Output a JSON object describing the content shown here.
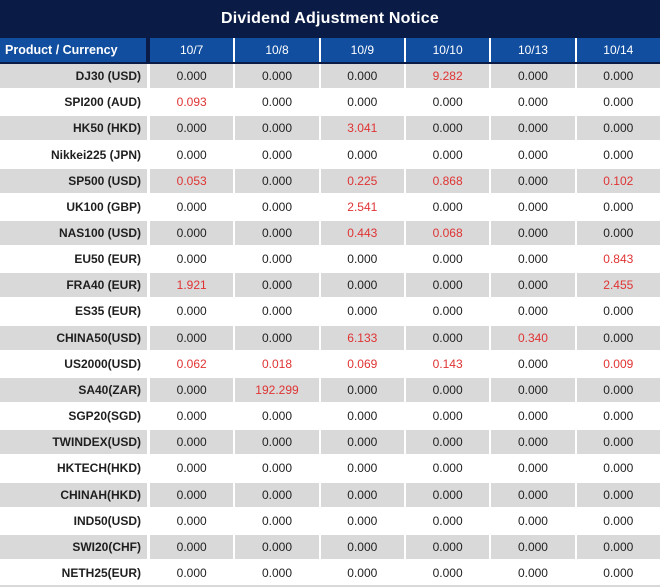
{
  "title": "Dividend Adjustment Notice",
  "colors": {
    "title_bg": "#0A1C45",
    "header_bg": "#114EA0",
    "row_alt": "#D9D9D9",
    "separator": "#FFFFFF",
    "text": "#1F1F1F",
    "red": "#E03333"
  },
  "table": {
    "product_header": "Product / Currency",
    "date_headers": [
      "10/7",
      "10/8",
      "10/9",
      "10/10",
      "10/13",
      "10/14"
    ],
    "rows": [
      {
        "product": "DJ30 (USD)",
        "values": [
          "0.000",
          "0.000",
          "0.000",
          "9.282",
          "0.000",
          "0.000"
        ],
        "red": [
          0,
          0,
          0,
          1,
          0,
          0
        ]
      },
      {
        "product": "SPI200 (AUD)",
        "values": [
          "0.093",
          "0.000",
          "0.000",
          "0.000",
          "0.000",
          "0.000"
        ],
        "red": [
          1,
          0,
          0,
          0,
          0,
          0
        ]
      },
      {
        "product": "HK50 (HKD)",
        "values": [
          "0.000",
          "0.000",
          "3.041",
          "0.000",
          "0.000",
          "0.000"
        ],
        "red": [
          0,
          0,
          1,
          0,
          0,
          0
        ]
      },
      {
        "product": "Nikkei225 (JPN)",
        "values": [
          "0.000",
          "0.000",
          "0.000",
          "0.000",
          "0.000",
          "0.000"
        ],
        "red": [
          0,
          0,
          0,
          0,
          0,
          0
        ]
      },
      {
        "product": "SP500 (USD)",
        "values": [
          "0.053",
          "0.000",
          "0.225",
          "0.868",
          "0.000",
          "0.102"
        ],
        "red": [
          1,
          0,
          1,
          1,
          0,
          1
        ]
      },
      {
        "product": "UK100 (GBP)",
        "values": [
          "0.000",
          "0.000",
          "2.541",
          "0.000",
          "0.000",
          "0.000"
        ],
        "red": [
          0,
          0,
          1,
          0,
          0,
          0
        ]
      },
      {
        "product": "NAS100 (USD)",
        "values": [
          "0.000",
          "0.000",
          "0.443",
          "0.068",
          "0.000",
          "0.000"
        ],
        "red": [
          0,
          0,
          1,
          1,
          0,
          0
        ]
      },
      {
        "product": "EU50 (EUR)",
        "values": [
          "0.000",
          "0.000",
          "0.000",
          "0.000",
          "0.000",
          "0.843"
        ],
        "red": [
          0,
          0,
          0,
          0,
          0,
          1
        ]
      },
      {
        "product": "FRA40 (EUR)",
        "values": [
          "1.921",
          "0.000",
          "0.000",
          "0.000",
          "0.000",
          "2.455"
        ],
        "red": [
          1,
          0,
          0,
          0,
          0,
          1
        ]
      },
      {
        "product": "ES35 (EUR)",
        "values": [
          "0.000",
          "0.000",
          "0.000",
          "0.000",
          "0.000",
          "0.000"
        ],
        "red": [
          0,
          0,
          0,
          0,
          0,
          0
        ]
      },
      {
        "product": "CHINA50(USD)",
        "values": [
          "0.000",
          "0.000",
          "6.133",
          "0.000",
          "0.340",
          "0.000"
        ],
        "red": [
          0,
          0,
          1,
          0,
          1,
          0
        ]
      },
      {
        "product": "US2000(USD)",
        "values": [
          "0.062",
          "0.018",
          "0.069",
          "0.143",
          "0.000",
          "0.009"
        ],
        "red": [
          1,
          1,
          1,
          1,
          0,
          1
        ]
      },
      {
        "product": "SA40(ZAR)",
        "values": [
          "0.000",
          "192.299",
          "0.000",
          "0.000",
          "0.000",
          "0.000"
        ],
        "red": [
          0,
          1,
          0,
          0,
          0,
          0
        ]
      },
      {
        "product": "SGP20(SGD)",
        "values": [
          "0.000",
          "0.000",
          "0.000",
          "0.000",
          "0.000",
          "0.000"
        ],
        "red": [
          0,
          0,
          0,
          0,
          0,
          0
        ]
      },
      {
        "product": "TWINDEX(USD)",
        "values": [
          "0.000",
          "0.000",
          "0.000",
          "0.000",
          "0.000",
          "0.000"
        ],
        "red": [
          0,
          0,
          0,
          0,
          0,
          0
        ]
      },
      {
        "product": "HKTECH(HKD)",
        "values": [
          "0.000",
          "0.000",
          "0.000",
          "0.000",
          "0.000",
          "0.000"
        ],
        "red": [
          0,
          0,
          0,
          0,
          0,
          0
        ]
      },
      {
        "product": "CHINAH(HKD)",
        "values": [
          "0.000",
          "0.000",
          "0.000",
          "0.000",
          "0.000",
          "0.000"
        ],
        "red": [
          0,
          0,
          0,
          0,
          0,
          0
        ]
      },
      {
        "product": "IND50(USD)",
        "values": [
          "0.000",
          "0.000",
          "0.000",
          "0.000",
          "0.000",
          "0.000"
        ],
        "red": [
          0,
          0,
          0,
          0,
          0,
          0
        ]
      },
      {
        "product": "SWI20(CHF)",
        "values": [
          "0.000",
          "0.000",
          "0.000",
          "0.000",
          "0.000",
          "0.000"
        ],
        "red": [
          0,
          0,
          0,
          0,
          0,
          0
        ]
      },
      {
        "product": "NETH25(EUR)",
        "values": [
          "0.000",
          "0.000",
          "0.000",
          "0.000",
          "0.000",
          "0.000"
        ],
        "red": [
          0,
          0,
          0,
          0,
          0,
          0
        ]
      }
    ]
  }
}
